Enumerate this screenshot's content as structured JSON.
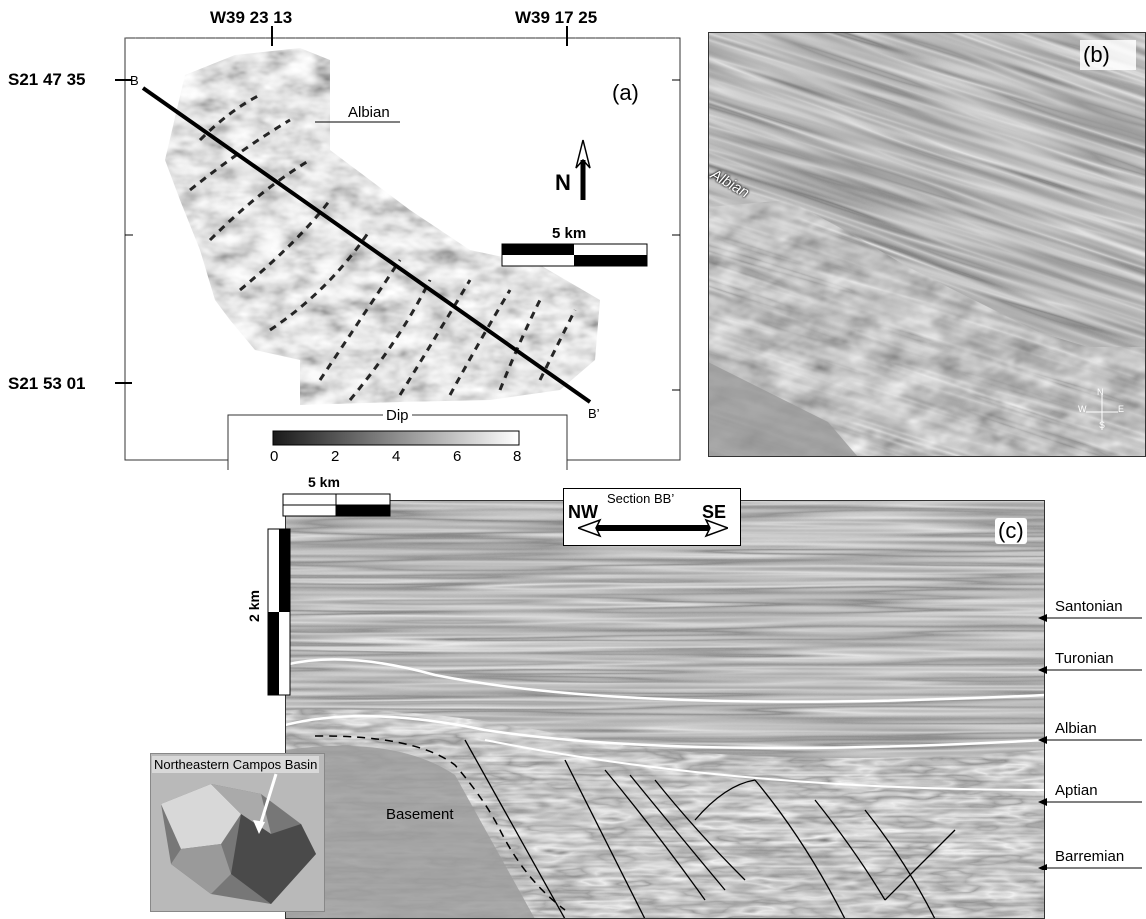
{
  "panel_a": {
    "letter": "(a)",
    "lon_labels": [
      "W39 23 13",
      "W39 17 25"
    ],
    "lat_labels": [
      "S21 47 35",
      "S21 53 01"
    ],
    "section_start": "B",
    "section_end": "B’",
    "horizon_label": "Albian",
    "north": "N",
    "scale_label": "5 km",
    "colorbar": {
      "title": "Dip",
      "ticks": [
        "0",
        "2",
        "4",
        "6",
        "8"
      ],
      "colors": [
        "#1a1a1a",
        "#ffffff"
      ]
    }
  },
  "panel_b": {
    "letter": "(b)",
    "horizon_label": "Albian",
    "compass": [
      "N",
      "E",
      "S",
      "W"
    ]
  },
  "panel_c": {
    "letter": "(c)",
    "scale_h": "5 km",
    "scale_v": "2 km",
    "section_title": "Section BB’",
    "dir_left": "NW",
    "dir_right": "SE",
    "horizons": [
      "Santonian",
      "Turonian",
      "Albian",
      "Aptian",
      "Barremian"
    ],
    "basement_label": "Basement",
    "inset_label": "Northeastern Campos Basin"
  }
}
